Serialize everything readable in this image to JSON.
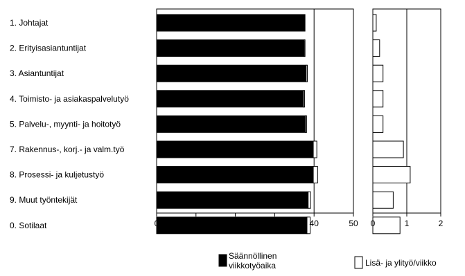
{
  "chart_data": {
    "type": "bar",
    "orientation": "horizontal",
    "categories": [
      "1. Johtajat",
      "2. Erityisasiantuntijat",
      "3. Asiantuntijat",
      "4. Toimisto- ja asiakaspalvelutyö",
      "5. Palvelu-, myynti- ja hoitotyö",
      "7. Rakennus-, korj.- ja valm.työ",
      "8. Prosessi- ja kuljetustyö",
      "9. Muut työntekijät",
      "0. Sotilaat"
    ],
    "panels": [
      {
        "series": [
          {
            "name": "Säännöllinen viikkotyöaika",
            "color": "#000000",
            "values": [
              37.6,
              37.5,
              38.0,
              37.3,
              37.8,
              39.8,
              39.8,
              38.5,
              38.2
            ]
          },
          {
            "name": "Lisä- ja ylityö/viikko",
            "color": "#ffffff",
            "values": [
              0.1,
              0.2,
              0.3,
              0.3,
              0.3,
              0.9,
              1.1,
              0.6,
              0.8
            ]
          }
        ],
        "xlim": [
          0,
          50
        ],
        "xticks": [
          "0",
          "10",
          "20",
          "30",
          "40",
          "50"
        ],
        "reference_line": 40
      },
      {
        "series": [
          {
            "name": "Lisä- ja ylityö/viikko",
            "color": "#ffffff",
            "values": [
              0.1,
              0.2,
              0.3,
              0.3,
              0.3,
              0.9,
              1.1,
              0.6,
              0.8
            ]
          }
        ],
        "xlim": [
          0,
          2
        ],
        "xticks": [
          "0",
          "1",
          "2"
        ],
        "reference_line": 1
      }
    ],
    "legend": [
      {
        "lines": [
          "Säännöllinen",
          "viikkotyöaika"
        ],
        "swatch": "#000000"
      },
      {
        "lines": [
          "Lisä- ja ylityö/viikko"
        ],
        "swatch": "#ffffff"
      }
    ],
    "legend_position": "bottom"
  }
}
